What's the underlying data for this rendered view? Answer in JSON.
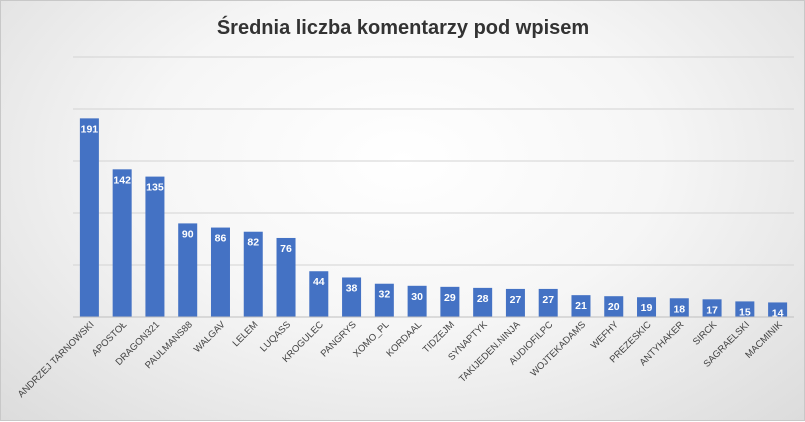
{
  "chart_data": {
    "type": "bar",
    "title": "Średnia liczba komentarzy pod wpisem",
    "categories": [
      "ANDRZEJ TARNOWSKI",
      "APOSTOŁ",
      "DRAGON321",
      "PAULMANS88",
      "WALGAV",
      "LELEM",
      "LUQASS",
      "KROGULEC",
      "PANGRYS",
      "XOMO_PL",
      "KORDAAL",
      "TIDZEJM",
      "SYNAPTYK",
      "TAKIJEDEN.NINJA",
      "AUDIOFILPC",
      "WOJTEKADAMS",
      "WEFHY",
      "PREZESKIC",
      "ANTYHAKER",
      "SIRCK",
      "SAGRAELSKI",
      "MACMINIK"
    ],
    "values": [
      191,
      142,
      135,
      90,
      86,
      82,
      76,
      44,
      38,
      32,
      30,
      29,
      28,
      27,
      27,
      21,
      20,
      19,
      18,
      17,
      15,
      14
    ],
    "xlabel": "",
    "ylabel": "",
    "ylim": [
      0,
      250
    ],
    "grid": true,
    "y_tick_labels_shown": false,
    "legend": "none",
    "colors": {
      "bar": "#4472c4",
      "bar_label": "#ffffff",
      "gridline": "#d3d3d3",
      "title": "#333333"
    }
  }
}
